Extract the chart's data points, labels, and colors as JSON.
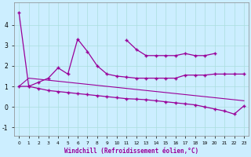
{
  "xlabel": "Windchill (Refroidissement éolien,°C)",
  "line_color": "#990099",
  "bg_color": "#cceeff",
  "grid_color": "#aadddd",
  "x_all": [
    0,
    1,
    2,
    3,
    4,
    5,
    6,
    7,
    8,
    9,
    10,
    11,
    12,
    13,
    14,
    15,
    16,
    17,
    18,
    19,
    20,
    21,
    22,
    23
  ],
  "line1_y": [
    4.6,
    1.0,
    1.2,
    1.4,
    1.9,
    1.6,
    3.3,
    2.7,
    2.0,
    1.6,
    1.5,
    1.45,
    1.4,
    1.4,
    1.4,
    1.4,
    1.4,
    1.55,
    1.55,
    1.55,
    1.6,
    1.6,
    1.6,
    1.6
  ],
  "line2_y": [
    null,
    null,
    null,
    null,
    null,
    null,
    null,
    null,
    null,
    null,
    null,
    3.25,
    2.8,
    2.5,
    2.5,
    2.5,
    2.5,
    2.6,
    2.5,
    2.5,
    2.6,
    null,
    null,
    null
  ],
  "line3_y": [
    1.0,
    1.0,
    0.9,
    0.8,
    0.75,
    0.7,
    0.65,
    0.6,
    0.55,
    0.5,
    0.45,
    0.4,
    0.38,
    0.35,
    0.3,
    0.25,
    0.2,
    0.15,
    0.1,
    0.0,
    -0.1,
    -0.2,
    -0.35,
    0.05
  ],
  "line4_y": [
    1.0,
    1.4,
    1.35,
    1.3,
    1.25,
    1.2,
    1.15,
    1.1,
    1.05,
    1.0,
    0.95,
    0.9,
    0.85,
    0.8,
    0.75,
    0.7,
    0.65,
    0.6,
    0.55,
    0.5,
    0.45,
    0.4,
    0.35,
    0.3
  ],
  "ylim": [
    -1.4,
    5.1
  ],
  "xlim": [
    -0.5,
    23.5
  ],
  "yticks": [
    -1,
    0,
    1,
    2,
    3,
    4
  ],
  "xticks": [
    0,
    1,
    2,
    3,
    4,
    5,
    6,
    7,
    8,
    9,
    10,
    11,
    12,
    13,
    14,
    15,
    16,
    17,
    18,
    19,
    20,
    21,
    22,
    23
  ]
}
